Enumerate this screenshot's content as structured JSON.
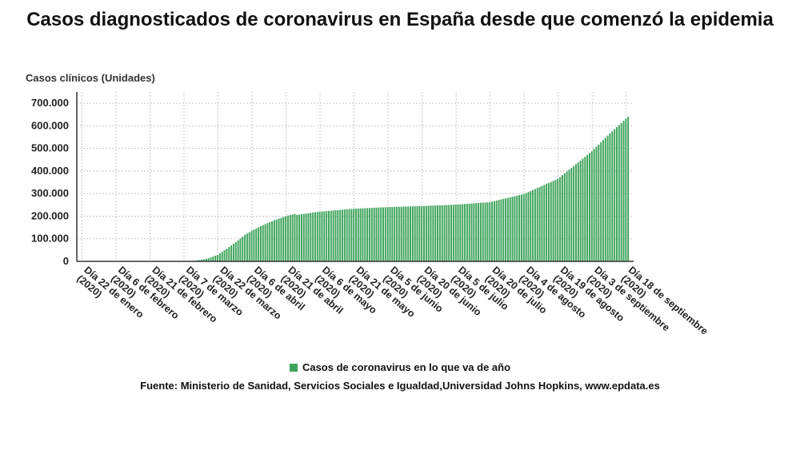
{
  "title": "Casos diagnosticados de coronavirus en España desde que comenzó la epidemia",
  "legend": {
    "label": "Casos de coronavirus en lo que va de año",
    "color": "#3fa45b"
  },
  "source": "Fuente: Ministerio de Sanidad, Servicios Sociales e Igualdad,Universidad Johns Hopkins, www.epdata.es",
  "chart_data": {
    "type": "bar",
    "title": "Casos diagnosticados de coronavirus en España desde que comenzó la epidemia",
    "ylabel": "Casos clínicos (Unidades)",
    "xlabel": "",
    "ylim": [
      0,
      750000
    ],
    "grid": true,
    "legend_position": "bottom",
    "y_ticks": [
      "0",
      "100.000",
      "200.000",
      "300.000",
      "400.000",
      "500.000",
      "600.000",
      "700.000"
    ],
    "x_tick_labels": [
      "Día 22 de enero (2020)",
      "Día 6 de febrero (2020)",
      "Día 21 de febrero (2020)",
      "Día 7 de marzo (2020)",
      "Día 22 de marzo (2020)",
      "Día 6 de abril (2020)",
      "Día 21 de abril (2020)",
      "Día 6 de mayo (2020)",
      "Día 21 de mayo (2020)",
      "Día 5 de junio (2020)",
      "Día 20 de junio (2020)",
      "Día 5 de julio (2020)",
      "Día 20 de julio (2020)",
      "Día 4 de agosto (2020)",
      "Día 19 de agosto (2020)",
      "Día 3 de septiembre (2020)",
      "Día 18 de septiembre (2020)"
    ],
    "series": [
      {
        "name": "Casos de coronavirus en lo que va de año",
        "color": "#3fa45b",
        "x_start": "2020-01-22",
        "x_end": "2020-09-19",
        "interval": "daily",
        "key_points": [
          {
            "x": "2020-01-22",
            "y": 0
          },
          {
            "x": "2020-03-01",
            "y": 84
          },
          {
            "x": "2020-03-07",
            "y": 500
          },
          {
            "x": "2020-03-12",
            "y": 3000
          },
          {
            "x": "2020-03-15",
            "y": 7800
          },
          {
            "x": "2020-03-18",
            "y": 14000
          },
          {
            "x": "2020-03-22",
            "y": 28600
          },
          {
            "x": "2020-03-26",
            "y": 56000
          },
          {
            "x": "2020-03-30",
            "y": 85000
          },
          {
            "x": "2020-04-03",
            "y": 117000
          },
          {
            "x": "2020-04-06",
            "y": 135000
          },
          {
            "x": "2020-04-11",
            "y": 161000
          },
          {
            "x": "2020-04-16",
            "y": 182000
          },
          {
            "x": "2020-04-21",
            "y": 200000
          },
          {
            "x": "2020-04-25",
            "y": 210000
          },
          {
            "x": "2020-04-26",
            "y": 206000
          },
          {
            "x": "2020-05-06",
            "y": 220000
          },
          {
            "x": "2020-05-21",
            "y": 233000
          },
          {
            "x": "2020-06-05",
            "y": 240000
          },
          {
            "x": "2020-06-20",
            "y": 245000
          },
          {
            "x": "2020-07-05",
            "y": 251000
          },
          {
            "x": "2020-07-20",
            "y": 262000
          },
          {
            "x": "2020-08-04",
            "y": 298000
          },
          {
            "x": "2020-08-19",
            "y": 365000
          },
          {
            "x": "2020-09-03",
            "y": 487000
          },
          {
            "x": "2020-09-11",
            "y": 567000
          },
          {
            "x": "2020-09-19",
            "y": 640000
          }
        ]
      }
    ]
  }
}
